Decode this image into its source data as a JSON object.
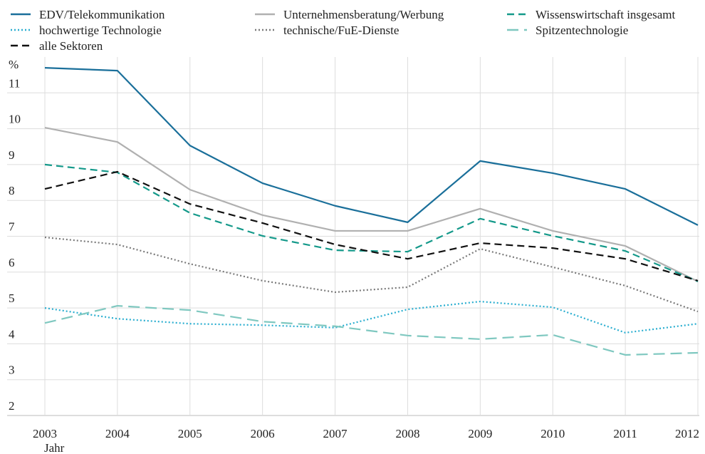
{
  "chart_data": {
    "type": "line",
    "x_label": "Jahr",
    "y_label": "%",
    "categories": [
      "2003",
      "2004",
      "2005",
      "2006",
      "2007",
      "2008",
      "2009",
      "2010",
      "2011",
      "2012"
    ],
    "ylim": [
      2,
      12
    ],
    "yticks": [
      2,
      3,
      4,
      5,
      6,
      7,
      8,
      9,
      10,
      11
    ],
    "grid": true,
    "series": [
      {
        "name": "EDV/Telekommunikation",
        "color": "#1a6f9a",
        "style": "solid",
        "values": [
          11.7,
          11.62,
          9.53,
          8.48,
          7.85,
          7.39,
          9.1,
          8.76,
          8.32,
          7.31
        ]
      },
      {
        "name": "Unternehmensberatung/Werbung",
        "color": "#b0b0b0",
        "style": "solid",
        "values": [
          10.03,
          9.63,
          8.3,
          7.59,
          7.15,
          7.15,
          7.77,
          7.15,
          6.73,
          5.74
        ]
      },
      {
        "name": "Wissenswirtschaft insgesamt",
        "color": "#14998a",
        "style": "dashed",
        "values": [
          9.0,
          8.78,
          7.65,
          7.01,
          6.61,
          6.57,
          7.49,
          7.01,
          6.59,
          5.74
        ]
      },
      {
        "name": "hochwertige Technologie",
        "color": "#2aaed0",
        "style": "dotted",
        "values": [
          5.0,
          4.7,
          4.56,
          4.52,
          4.45,
          4.96,
          5.18,
          5.02,
          4.31,
          4.56
        ]
      },
      {
        "name": "technische/FuE-Dienste",
        "color": "#7a7a7a",
        "style": "dotted",
        "values": [
          6.97,
          6.77,
          6.23,
          5.76,
          5.44,
          5.58,
          6.65,
          6.14,
          5.62,
          4.9
        ]
      },
      {
        "name": "Spitzentechnologie",
        "color": "#7fc8c0",
        "style": "longdash",
        "values": [
          4.58,
          5.06,
          4.94,
          4.62,
          4.49,
          4.23,
          4.13,
          4.25,
          3.69,
          3.75
        ]
      },
      {
        "name": "alle Sektoren",
        "color": "#111111",
        "style": "dashed",
        "values": [
          8.32,
          8.8,
          7.9,
          7.37,
          6.77,
          6.37,
          6.81,
          6.67,
          6.37,
          5.76
        ]
      }
    ]
  }
}
